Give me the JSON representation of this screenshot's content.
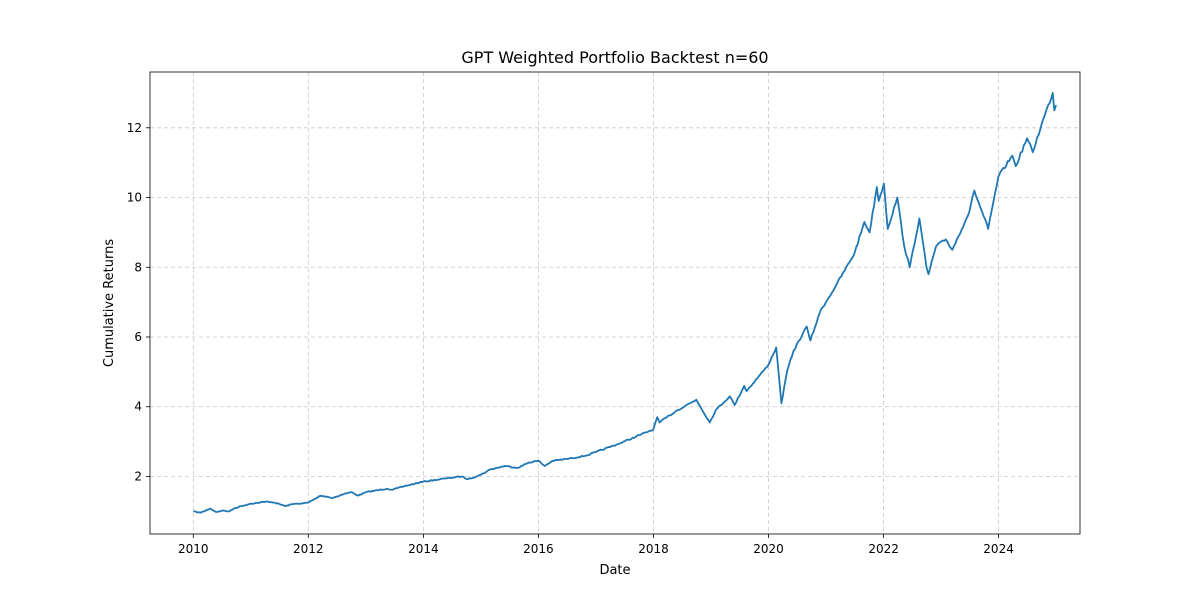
{
  "chart_data": {
    "type": "line",
    "title": "GPT Weighted Portfolio Backtest n=60",
    "xlabel": "Date",
    "ylabel": "Cumulative Returns",
    "xlim": [
      "2009-04-01",
      "2025-06-01"
    ],
    "ylim": [
      0.35,
      13.6
    ],
    "grid": true,
    "x_ticks": [
      "2010",
      "2012",
      "2014",
      "2016",
      "2018",
      "2020",
      "2022",
      "2024"
    ],
    "y_ticks": [
      "2",
      "4",
      "6",
      "8",
      "10",
      "12"
    ],
    "y_tick_values": [
      2,
      4,
      6,
      8,
      10,
      12
    ],
    "colors": {
      "line": "#1f77b4"
    },
    "series": [
      {
        "x": [
          "2010-01-01",
          "2010-02-15",
          "2010-04-20",
          "2010-05-25",
          "2010-07-01",
          "2010-08-20",
          "2010-09-15",
          "2010-11-01",
          "2011-01-01",
          "2011-04-20",
          "2011-06-01",
          "2011-08-10",
          "2011-09-15",
          "2011-10-20",
          "2011-12-01",
          "2012-01-01",
          "2012-03-20",
          "2012-05-01",
          "2012-06-01",
          "2012-08-15",
          "2012-10-01",
          "2012-11-15",
          "2013-01-01",
          "2013-05-15",
          "2013-06-20",
          "2013-09-01",
          "2013-12-31",
          "2014-06-01",
          "2014-09-01",
          "2014-10-10",
          "2014-12-31",
          "2015-03-01",
          "2015-06-01",
          "2015-08-25",
          "2015-11-01",
          "2016-01-01",
          "2016-02-10",
          "2016-04-01",
          "2016-06-27",
          "2016-11-01",
          "2016-12-31",
          "2017-06-01",
          "2017-12-31",
          "2018-01-25",
          "2018-02-08",
          "2018-06-01",
          "2018-09-30",
          "2018-12-24",
          "2019-01-31",
          "2019-04-30",
          "2019-05-31",
          "2019-07-31",
          "2019-08-15",
          "2019-12-31",
          "2020-02-19",
          "2020-03-23",
          "2020-04-30",
          "2020-06-08",
          "2020-08-31",
          "2020-09-23",
          "2020-11-30",
          "2020-12-31",
          "2021-03-08",
          "2021-06-30",
          "2021-09-01",
          "2021-10-04",
          "2021-11-19",
          "2021-12-01",
          "2022-01-03",
          "2022-01-27",
          "2022-03-29",
          "2022-05-12",
          "2022-06-16",
          "2022-08-16",
          "2022-09-30",
          "2022-10-13",
          "2022-11-30",
          "2023-01-31",
          "2023-03-13",
          "2023-06-30",
          "2023-07-31",
          "2023-10-27",
          "2023-12-31",
          "2024-03-28",
          "2024-04-19",
          "2024-06-30",
          "2024-08-05",
          "2024-09-30",
          "2024-12-10",
          "2024-12-20",
          "2024-12-31"
        ],
        "values": [
          1.0,
          0.96,
          1.08,
          0.98,
          1.02,
          1.0,
          1.08,
          1.15,
          1.22,
          1.28,
          1.25,
          1.15,
          1.2,
          1.22,
          1.23,
          1.25,
          1.45,
          1.42,
          1.38,
          1.5,
          1.55,
          1.45,
          1.55,
          1.65,
          1.62,
          1.72,
          1.85,
          1.95,
          2.0,
          1.92,
          2.05,
          2.2,
          2.3,
          2.25,
          2.4,
          2.45,
          2.3,
          2.45,
          2.5,
          2.6,
          2.7,
          2.95,
          3.35,
          3.7,
          3.55,
          3.9,
          4.2,
          3.55,
          3.9,
          4.3,
          4.05,
          4.6,
          4.45,
          5.2,
          5.7,
          4.1,
          5.05,
          5.6,
          6.3,
          5.9,
          6.8,
          7.0,
          7.5,
          8.4,
          9.3,
          9.0,
          10.3,
          9.9,
          10.4,
          9.1,
          10.0,
          8.6,
          8.0,
          9.4,
          8.0,
          7.8,
          8.6,
          8.8,
          8.5,
          9.6,
          10.2,
          9.1,
          10.6,
          11.2,
          10.9,
          11.7,
          11.3,
          12.1,
          13.0,
          12.5,
          12.65
        ]
      }
    ]
  }
}
